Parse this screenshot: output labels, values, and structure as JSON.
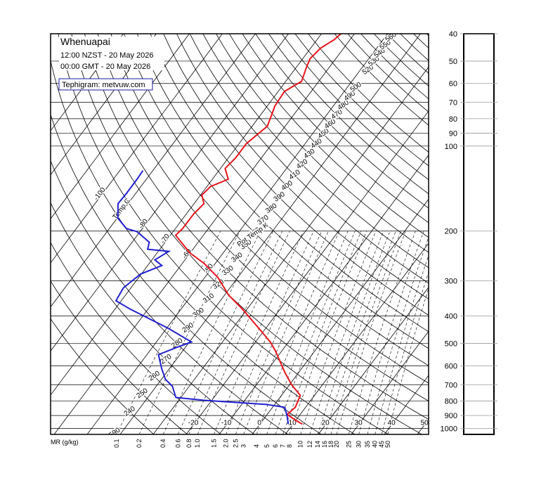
{
  "chart_data": {
    "type": "tephigram",
    "title": "Whenuapai",
    "subtitle": [
      "12:00 NZST - 20 May 2026",
      "00:00 GMT - 20 May 2026"
    ],
    "source": "Tephigram: metvuw.com",
    "isotherm_title": "Temp C",
    "adiabat_title": "Pot Temp K",
    "mixing_ratio_title": "MR (g/kg)",
    "plim": [
      40,
      1050
    ],
    "pressure_ticks": [
      40,
      50,
      60,
      70,
      80,
      90,
      100,
      200,
      300,
      400,
      500,
      600,
      700,
      800,
      900,
      1000
    ],
    "isotherms": [
      -130,
      -120,
      -110,
      -100,
      -90,
      -80,
      -70,
      -60,
      -50,
      -40,
      -30,
      -20,
      -10,
      0,
      10,
      20,
      30,
      40,
      50
    ],
    "isotherm_labels_upper": [
      -100,
      -80,
      -70,
      -60,
      -50
    ],
    "isotherm_labels_lower": [
      -20,
      -10,
      0,
      10,
      20,
      30,
      40,
      50
    ],
    "adiabats": [
      240,
      250,
      260,
      270,
      280,
      290,
      300,
      310,
      320,
      330,
      340,
      350,
      360,
      370,
      380,
      390,
      400,
      410,
      420,
      430,
      440,
      450,
      460,
      470,
      480,
      490,
      500,
      520,
      530,
      540,
      550,
      560,
      570,
      580,
      590
    ],
    "mixing_ratios": [
      0.1,
      0.2,
      0.4,
      0.6,
      0.8,
      {
        "value": 1,
        "label": "1.0"
      },
      1.5,
      {
        "value": 2,
        "label": "2.0"
      },
      2.5,
      3,
      4,
      5,
      6,
      7,
      8,
      10,
      12,
      14,
      16,
      18,
      20,
      25,
      30,
      35,
      40,
      45,
      50
    ],
    "profiles": [
      {
        "color": "#e8141c",
        "pressure": [
          966,
          934,
          892,
          842,
          764,
          701,
          632,
          533,
          497,
          448,
          378,
          337,
          292,
          260,
          239,
          207,
          196,
          174,
          160,
          149,
          139,
          131,
          120,
          110,
          98,
          85,
          72,
          64,
          59,
          53,
          49,
          45,
          42,
          40
        ],
        "temperature": [
          12.9,
          9.8,
          6.0,
          6.9,
          5.7,
          0.7,
          -4.3,
          -11.8,
          -15.2,
          -21.3,
          -31.4,
          -38.8,
          -46.0,
          -53.5,
          -60.1,
          -68.4,
          -67.8,
          -67.8,
          -67.0,
          -69.6,
          -68.9,
          -65.2,
          -68.6,
          -67.8,
          -67.8,
          -65.4,
          -67.7,
          -68.1,
          -65.2,
          -66.8,
          -67.8,
          -67.0,
          -64.8,
          -64.1
        ]
      },
      {
        "color": "#2020d0",
        "pressure": [
          966,
          902,
          842,
          823,
          795,
          777,
          709,
          670,
          615,
          548,
          518,
          494,
          443,
          378,
          353,
          318,
          284,
          265,
          253,
          236,
          232,
          219,
          201,
          196,
          180,
          160,
          147,
          131,
          122
        ],
        "temperature": [
          8.6,
          6.3,
          3.7,
          -2.2,
          -22.3,
          -31.5,
          -35.1,
          -38.8,
          -42.3,
          -46.5,
          -42.8,
          -39.4,
          -49.3,
          -65.4,
          -71.6,
          -72.3,
          -70.2,
          -65.7,
          -69.1,
          -66.8,
          -73.7,
          -74.8,
          -80.9,
          -84.8,
          -89.8,
          -93.0,
          -92.8,
          -92.8,
          -93.0
        ]
      }
    ]
  }
}
